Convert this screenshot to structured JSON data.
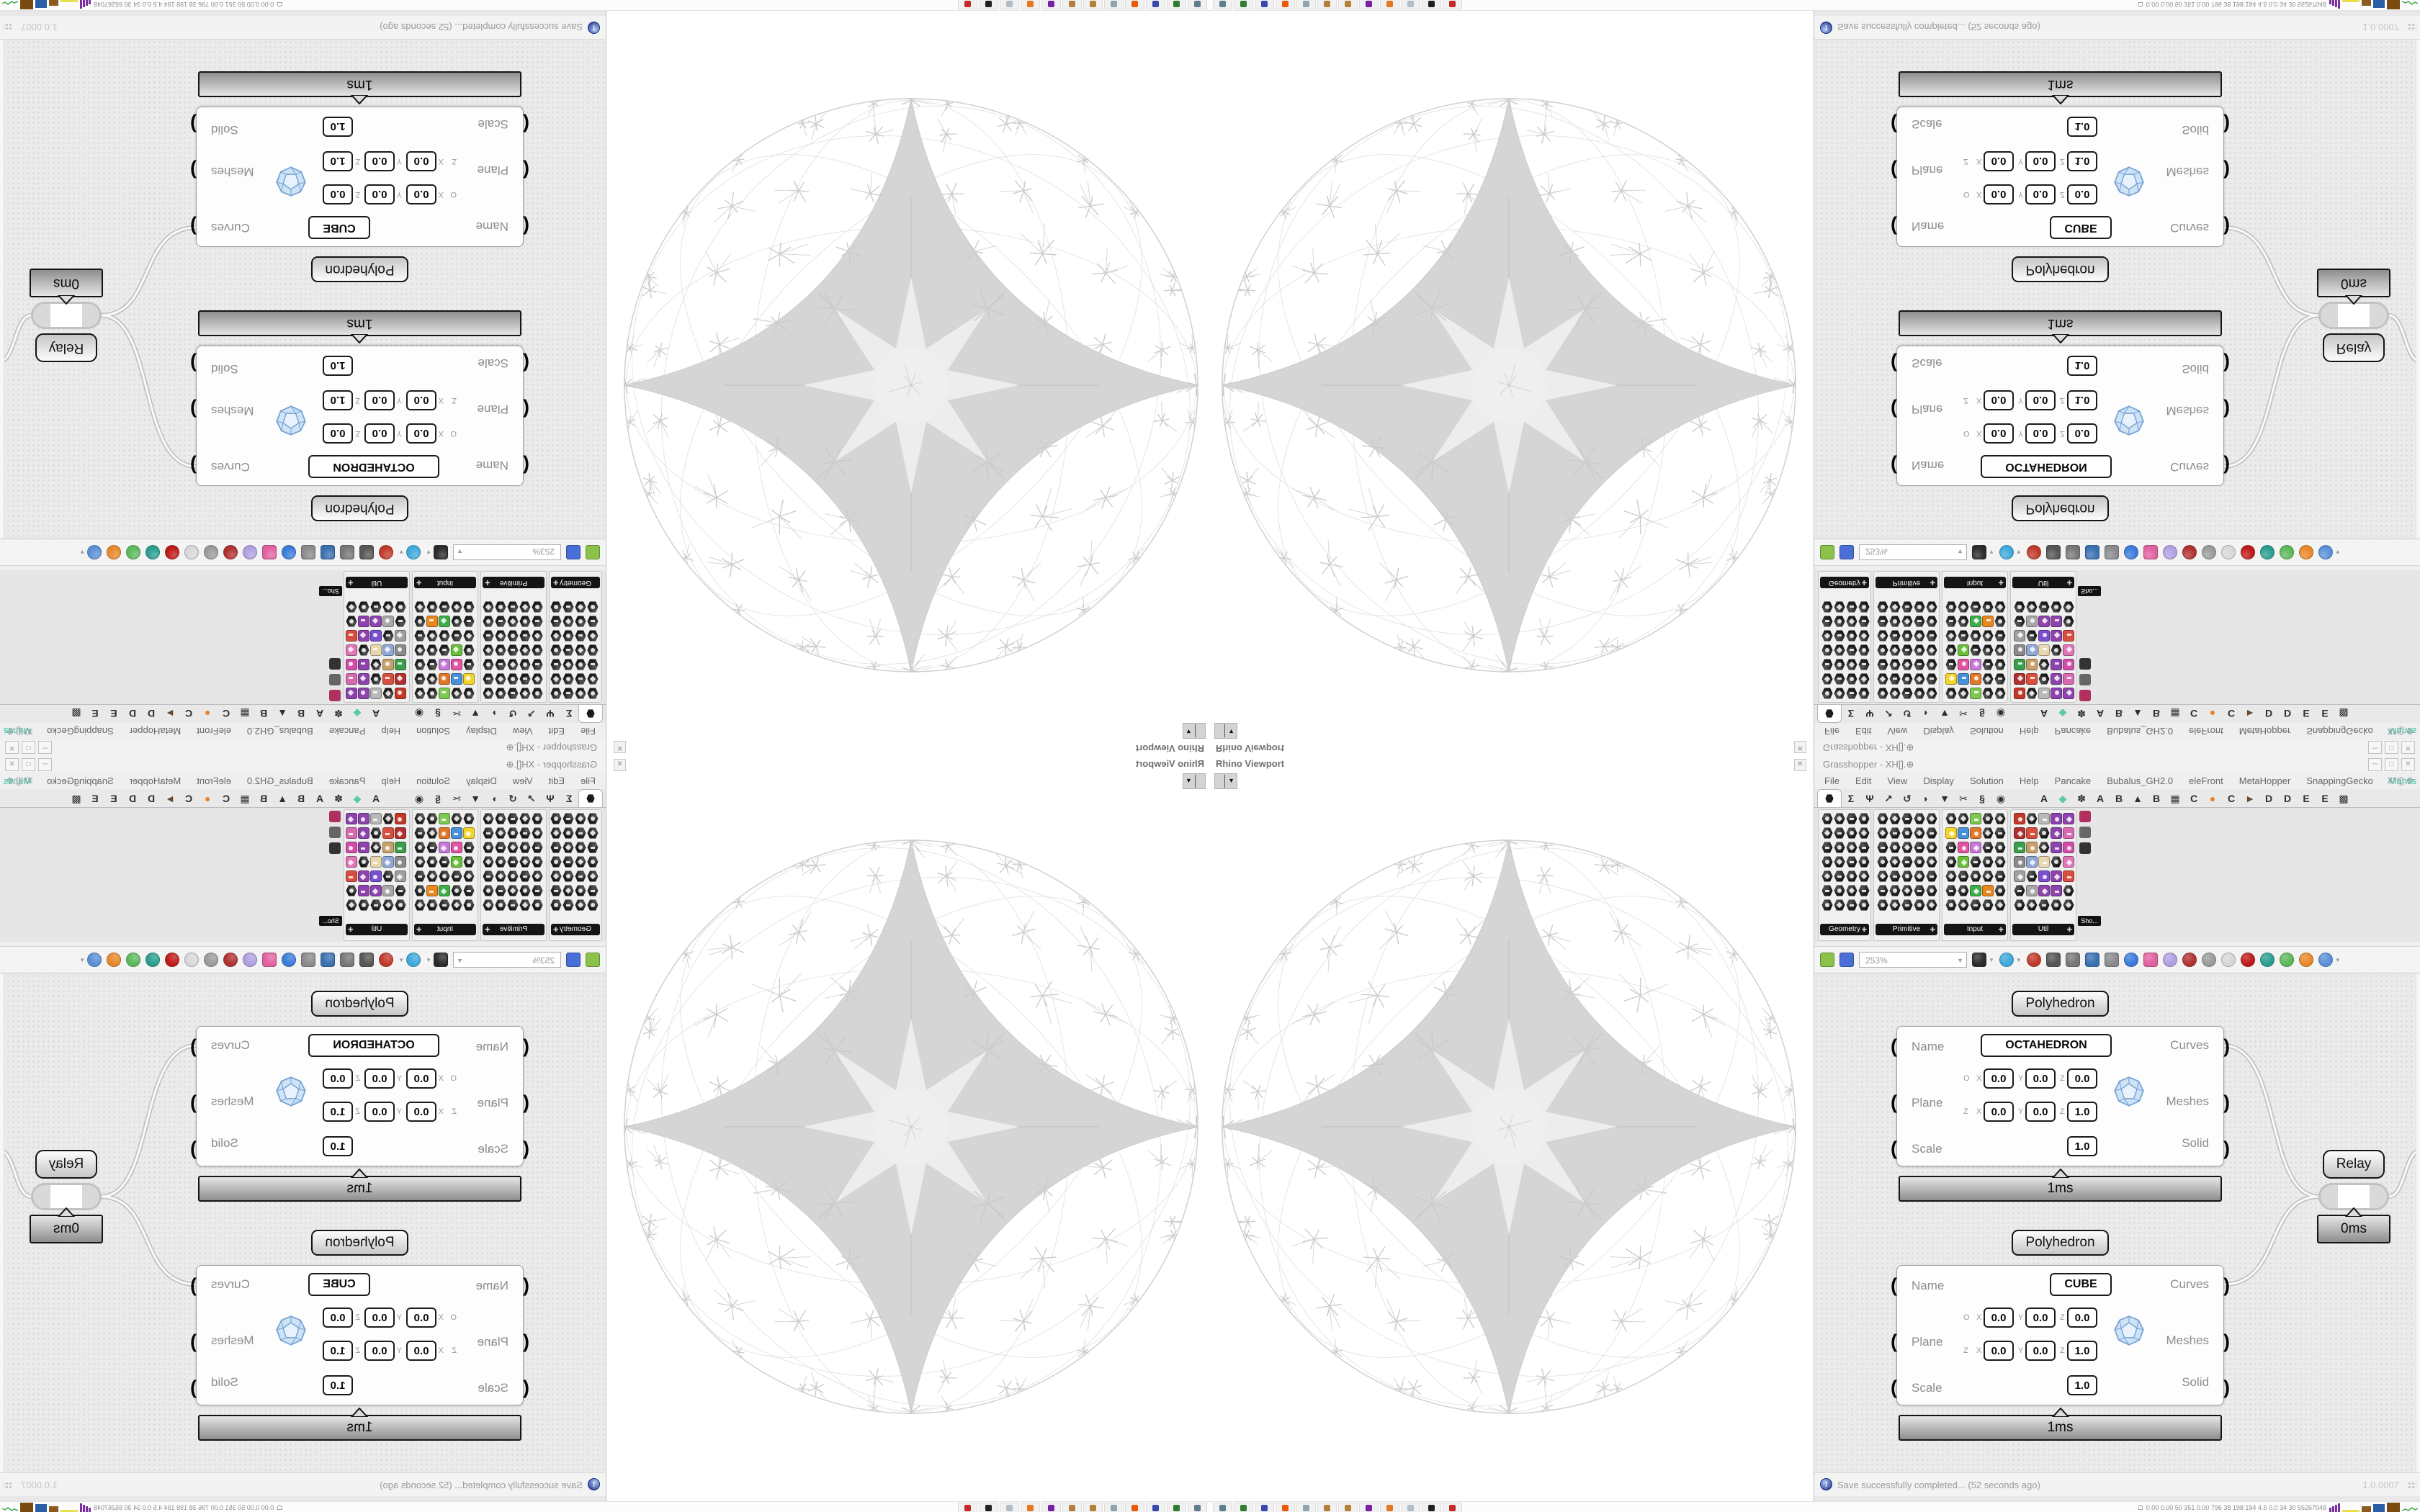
{
  "rhino": {
    "panel_title": "Rhino Viewport",
    "close_glyph": "✕"
  },
  "gh": {
    "title": "Grasshopper - XH[].⊕",
    "doc_label": "XH[].⊕",
    "window_buttons": [
      "─",
      "□",
      "✕"
    ],
    "menus": [
      "File",
      "Edit",
      "View",
      "Display",
      "Solution",
      "Help",
      "Pancake",
      "Bubalus_GH2.0",
      "eleFront",
      "MetaHopper",
      "SnappingGecko",
      "Mantis"
    ],
    "menu_accent": "Mantis",
    "accent_color": "#35c7a4",
    "zoom_level": "253%",
    "show_button": "Sho...",
    "status": "Save successfully completed... (52 seconds ago)",
    "version": "1.0.0007",
    "tabs": [
      {
        "glyph": "hex",
        "name": "params",
        "selected": true
      },
      {
        "glyph": "Σ",
        "name": "maths"
      },
      {
        "glyph": "Ψ",
        "name": "sets"
      },
      {
        "glyph": "↗",
        "name": "vector"
      },
      {
        "glyph": "↺",
        "name": "curve"
      },
      {
        "glyph": "◗",
        "name": "surface"
      },
      {
        "glyph": "▼",
        "name": "mesh"
      },
      {
        "glyph": "✂",
        "name": "intersect"
      },
      {
        "glyph": "§",
        "name": "transform"
      },
      {
        "glyph": "◉",
        "name": "display"
      },
      {
        "glyph": "A",
        "name": "plugin-a1",
        "group2": true
      },
      {
        "glyph": "◆",
        "name": "plugin-diamond",
        "color": "#58c9a0",
        "group2": true
      },
      {
        "glyph": "✽",
        "name": "plugin-flower",
        "group2": true
      },
      {
        "glyph": "A",
        "name": "plugin-a2",
        "group2": true
      },
      {
        "glyph": "B",
        "name": "plugin-b1",
        "group2": true
      },
      {
        "glyph": "▲",
        "name": "plugin-mountain",
        "group2": true
      },
      {
        "glyph": "B",
        "name": "plugin-b2",
        "group2": true
      },
      {
        "glyph": "▦",
        "name": "plugin-grid",
        "group2": true
      },
      {
        "glyph": "C",
        "name": "plugin-c1",
        "group2": true
      },
      {
        "glyph": "●",
        "name": "plugin-orange",
        "color": "#e8822a",
        "group2": true
      },
      {
        "glyph": "C",
        "name": "plugin-c2",
        "group2": true
      },
      {
        "glyph": "►",
        "name": "plugin-bird",
        "color": "#6a4a2a",
        "group2": true
      },
      {
        "glyph": "D",
        "name": "plugin-d1",
        "group2": true
      },
      {
        "glyph": "D",
        "name": "plugin-d2",
        "group2": true
      },
      {
        "glyph": "E",
        "name": "plugin-e1",
        "group2": true
      },
      {
        "glyph": "E",
        "name": "plugin-e2",
        "group2": true
      },
      {
        "glyph": "▩",
        "name": "plugin-dots",
        "group2": true
      }
    ],
    "palette_groups": [
      {
        "label": "Geometry",
        "cols": 4
      },
      {
        "label": "Primitive",
        "cols": 5
      },
      {
        "label": "Input",
        "cols": 5
      },
      {
        "label": "Util",
        "cols": 5
      }
    ],
    "palette_rows": 7,
    "palette_accents": [
      [
        2,
        0,
        2,
        "#7ec850"
      ],
      [
        2,
        1,
        0,
        "#f5d327"
      ],
      [
        2,
        1,
        1,
        "#4a90d9"
      ],
      [
        2,
        1,
        2,
        "#e07a2a"
      ],
      [
        2,
        2,
        1,
        "#e055a0"
      ],
      [
        2,
        2,
        2,
        "#c878d8"
      ],
      [
        2,
        3,
        1,
        "#6abf3a"
      ],
      [
        2,
        5,
        2,
        "#3fae4a"
      ],
      [
        2,
        5,
        3,
        "#e8871e"
      ],
      [
        3,
        0,
        0,
        "#c0392b"
      ],
      [
        3,
        0,
        2,
        "#b8b8b8"
      ],
      [
        3,
        0,
        3,
        "#8e44ad"
      ],
      [
        3,
        0,
        4,
        "#8e44ad"
      ],
      [
        3,
        1,
        0,
        "#b03030"
      ],
      [
        3,
        1,
        1,
        "#d94f3f"
      ],
      [
        3,
        1,
        3,
        "#8e44ad"
      ],
      [
        3,
        1,
        4,
        "#d86ab0"
      ],
      [
        3,
        2,
        0,
        "#3a9e4a"
      ],
      [
        3,
        2,
        1,
        "#c8a06a"
      ],
      [
        3,
        2,
        3,
        "#8e44ad"
      ],
      [
        3,
        2,
        4,
        "#d14fa6"
      ],
      [
        3,
        3,
        0,
        "#8a8a8a"
      ],
      [
        3,
        3,
        1,
        "#8ea8d8"
      ],
      [
        3,
        3,
        2,
        "#e8d8b0"
      ],
      [
        3,
        3,
        4,
        "#e076b8"
      ],
      [
        3,
        4,
        0,
        "#a0a0a0"
      ],
      [
        3,
        4,
        2,
        "#7a4fd0"
      ],
      [
        3,
        4,
        3,
        "#8e44ad"
      ],
      [
        3,
        4,
        4,
        "#d94f3f"
      ],
      [
        3,
        5,
        1,
        "#a8a8a8"
      ],
      [
        3,
        5,
        2,
        "#8e44ad"
      ],
      [
        3,
        5,
        3,
        "#8e44ad"
      ]
    ],
    "mini_icons": [
      "#b03060",
      "#666666",
      "#333333"
    ],
    "toolbar": {
      "open_color": "#8bc34a",
      "save_color": "#4a6fd8",
      "buttons": [
        {
          "name": "zoom-extents",
          "color": "#2b2b2b",
          "square": true,
          "dd": true
        },
        {
          "name": "preview-eye",
          "color": "#3fa9d9",
          "dd": true
        },
        {
          "name": "redraw-flame",
          "color": "#c0392b"
        },
        {
          "name": "bake",
          "color": "#555555",
          "square": true
        },
        {
          "name": "publish-at",
          "color": "#777777",
          "square": true
        },
        {
          "name": "gha-loader",
          "color": "#3a6fb0",
          "square": true
        },
        {
          "name": "locate-window",
          "color": "#8a8a8a",
          "square": true
        },
        {
          "name": "fund-magnifier",
          "color": "#3a7ad9"
        },
        {
          "name": "package",
          "color": "#e060a0",
          "square": true
        },
        {
          "name": "balloon",
          "color": "#b0a0e0"
        },
        {
          "name": "wires-cross",
          "color": "#b03030"
        },
        {
          "name": "spheres-gray",
          "color": "#9a9a9a"
        },
        {
          "name": "rings",
          "color": "#d8d8d8"
        },
        {
          "name": "gem-red",
          "color": "#c01818"
        },
        {
          "name": "sphere-teal",
          "color": "#2a9d8f"
        },
        {
          "name": "sphere-green",
          "color": "#5cb85c"
        },
        {
          "name": "sphere-orange",
          "color": "#e8872a"
        },
        {
          "name": "sphere-blue",
          "color": "#5a8fd8",
          "dd": true
        }
      ]
    }
  },
  "components": [
    {
      "header": "Polyhedron",
      "name_value": "OCTAHEDRON",
      "inputs": [
        "Name",
        "Plane",
        "Scale"
      ],
      "outputs": [
        "Curves",
        "Meshes",
        "Solid"
      ],
      "plane_rows": [
        [
          "O",
          "X",
          "0.0",
          "Y",
          "0.0",
          "Z",
          "0.0"
        ],
        [
          "Z",
          "X",
          "0.0",
          "Y",
          "0.0",
          "Z",
          "1.0"
        ]
      ],
      "scale_value": "1.0",
      "profile": "1ms",
      "name_box_width": 182
    },
    {
      "header": "Polyhedron",
      "name_value": "CUBE",
      "inputs": [
        "Name",
        "Plane",
        "Scale"
      ],
      "outputs": [
        "Curves",
        "Meshes",
        "Solid"
      ],
      "plane_rows": [
        [
          "O",
          "X",
          "0.0",
          "Y",
          "0.0",
          "Z",
          "0.0"
        ],
        [
          "Z",
          "X",
          "0.0",
          "Y",
          "0.0",
          "Z",
          "1.0"
        ]
      ],
      "scale_value": "1.0",
      "profile": "1ms",
      "name_box_width": 86
    }
  ],
  "relay": {
    "label": "Relay",
    "profile": "0ms"
  },
  "taskbar": {
    "app_names": [
      "files",
      "emulator",
      "n64-floppy",
      "firefox",
      "calculator",
      "art-tool-1",
      "art-tool-2",
      "owl-app",
      "blender",
      "text-editor",
      "inkscape",
      "ruby-app"
    ],
    "app_colors": [
      "#607d8b",
      "#2e7d32",
      "#3949ab",
      "#e8590c",
      "#90a4ae",
      "#b5803a",
      "#b5803a",
      "#7b1fa2",
      "#e87722",
      "#b0bec5",
      "#212121",
      "#c62828"
    ],
    "monitor_mark": "☖",
    "monitor_text": "0.00 0.00  50  351  0.00 796  38  198 194  4.5  0.0  34  30  55267048",
    "graph_colors": [
      "#7a2f9e",
      "#e8e24a",
      "#8a5a1e",
      "#2a5fa8",
      "#7a4a10",
      "#3fae4a"
    ]
  }
}
